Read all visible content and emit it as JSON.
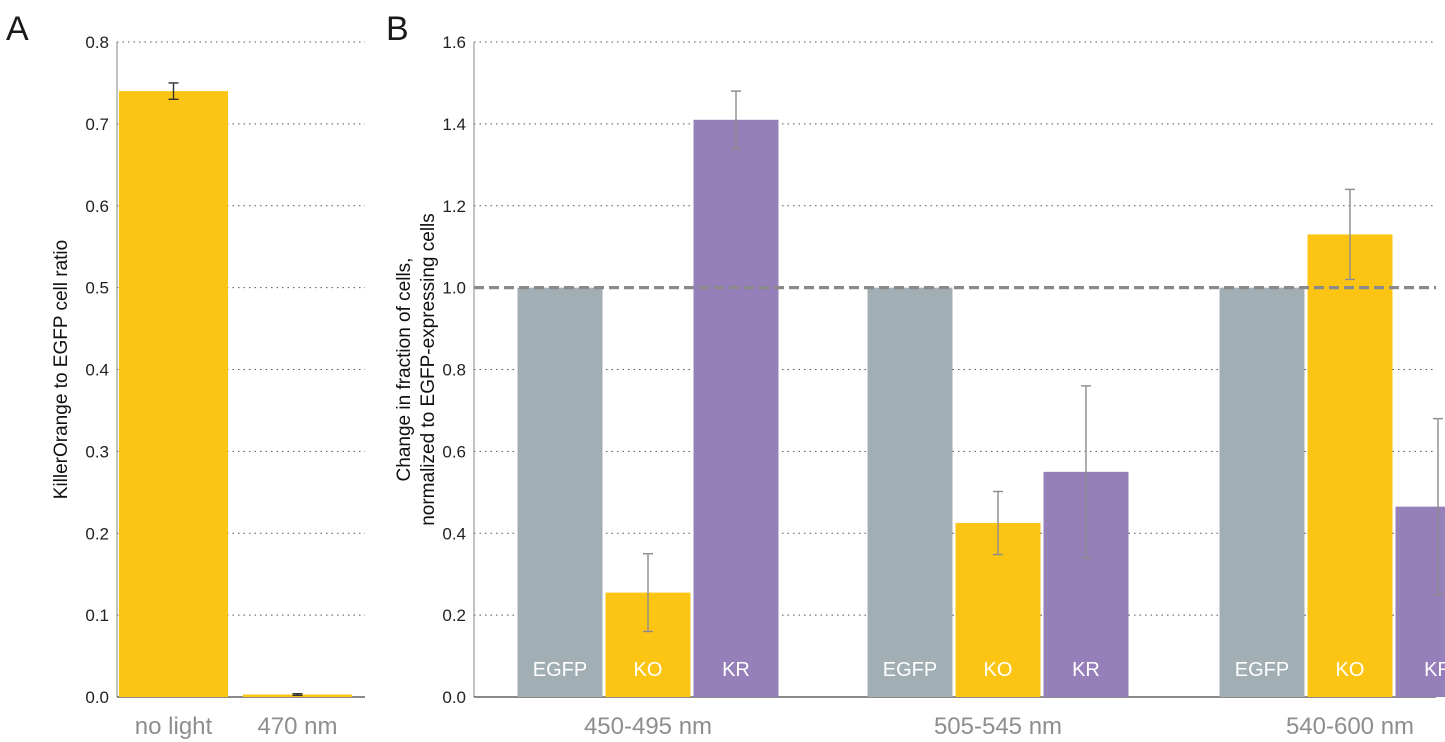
{
  "chart_data": [
    {
      "panel": "A",
      "type": "bar",
      "ylabel": "KillerOrange to EGFP cell ratio",
      "ylim": [
        0,
        0.8
      ],
      "yticks": [
        "0.0",
        "0.1",
        "0.2",
        "0.3",
        "0.4",
        "0.5",
        "0.6",
        "0.7",
        "0.8"
      ],
      "grid": true,
      "categories": [
        "no light",
        "470 nm"
      ],
      "values": [
        0.74,
        0.003
      ],
      "errors": [
        0.01,
        0.001
      ],
      "color": "#fdc513"
    },
    {
      "panel": "B",
      "type": "bar",
      "ylabel_lines": [
        "Change in fraction of cells,",
        "normalized to EGFP-expressing cells"
      ],
      "ylim": [
        0,
        1.6
      ],
      "yticks": [
        "0.0",
        "0.2",
        "0.4",
        "0.6",
        "0.8",
        "1.0",
        "1.2",
        "1.4",
        "1.6"
      ],
      "grid": true,
      "reference_line": 1.0,
      "groups": [
        "450-495 nm",
        "505-545 nm",
        "540-600 nm"
      ],
      "series": [
        {
          "name": "EGFP",
          "color": "#a1aeb4",
          "values": [
            1.0,
            1.0,
            1.0
          ],
          "errors": [
            0,
            0,
            0
          ]
        },
        {
          "name": "KO",
          "color": "#fdc513",
          "values": [
            0.255,
            0.425,
            1.13
          ],
          "errors": [
            0.095,
            0.077,
            0.11
          ]
        },
        {
          "name": "KR",
          "color": "#9580b9",
          "values": [
            1.41,
            0.55,
            0.465
          ],
          "errors": [
            0.07,
            0.21,
            0.215
          ]
        }
      ]
    }
  ]
}
